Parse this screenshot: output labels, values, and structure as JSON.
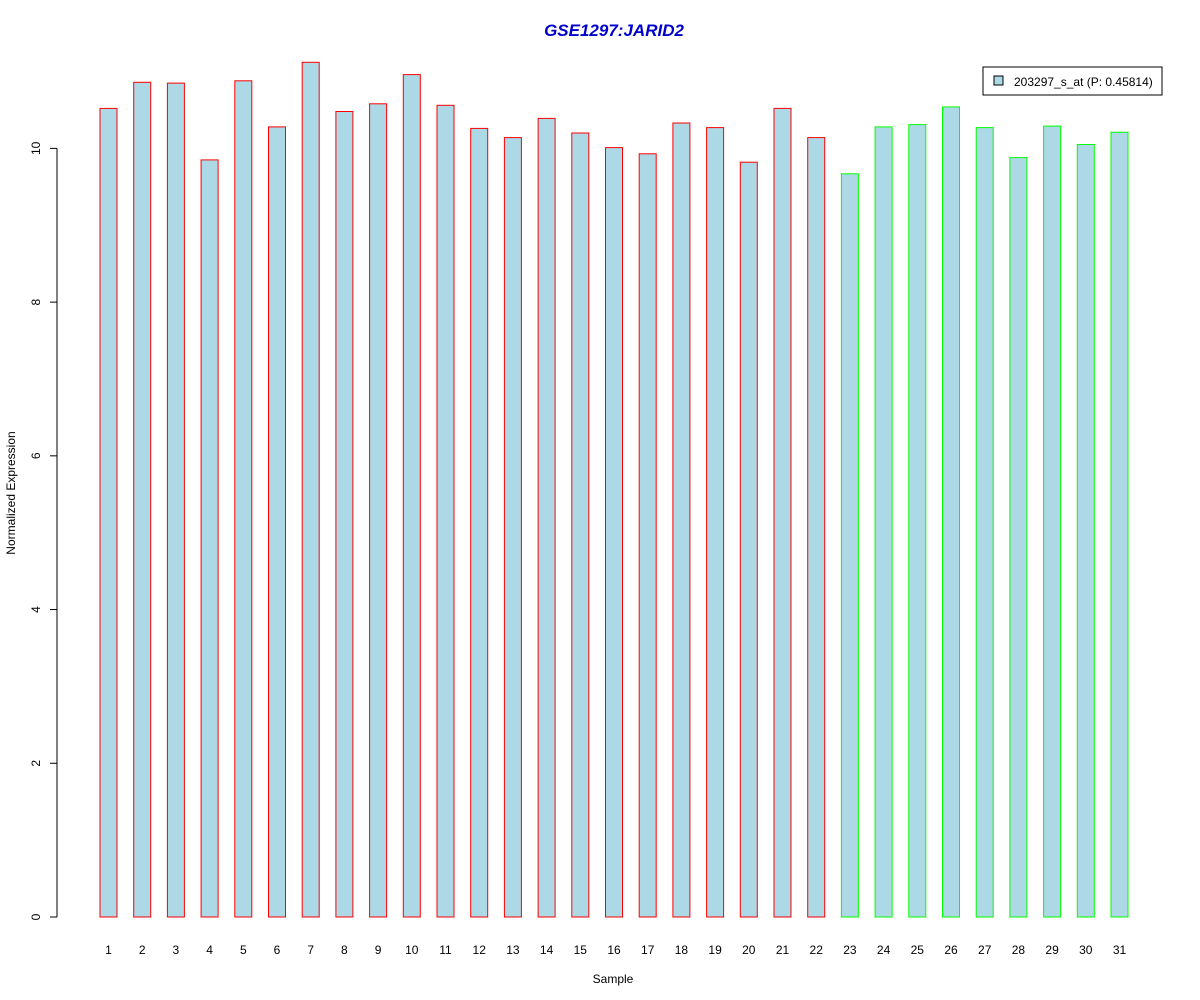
{
  "chart_data": {
    "type": "bar",
    "title": "GSE1297:JARID2",
    "xlabel": "Sample",
    "ylabel": "Normalized Expression",
    "ylim": [
      0,
      11.15
    ],
    "yticks": [
      0,
      2,
      4,
      6,
      8,
      10
    ],
    "grid": false,
    "legend": {
      "position": "top-right",
      "label": "203297_s_at (P: 0.45814)"
    },
    "categories": [
      "1",
      "2",
      "3",
      "4",
      "5",
      "6",
      "7",
      "8",
      "9",
      "10",
      "11",
      "12",
      "13",
      "14",
      "15",
      "16",
      "17",
      "18",
      "19",
      "20",
      "21",
      "22",
      "23",
      "24",
      "25",
      "26",
      "27",
      "28",
      "29",
      "30",
      "31"
    ],
    "values": [
      10.52,
      10.86,
      10.85,
      9.85,
      10.88,
      10.28,
      11.12,
      10.48,
      10.58,
      10.96,
      10.56,
      10.26,
      10.14,
      10.39,
      10.2,
      10.01,
      9.93,
      10.33,
      10.27,
      9.82,
      10.52,
      10.14,
      9.67,
      10.28,
      10.31,
      10.54,
      10.27,
      9.88,
      10.29,
      10.05,
      10.21
    ],
    "groups": [
      "red",
      "red",
      "red",
      "red",
      "red",
      "red",
      "red",
      "red",
      "red",
      "red",
      "red",
      "red",
      "red",
      "red",
      "red",
      "red",
      "red",
      "red",
      "red",
      "red",
      "red",
      "red",
      "green",
      "green",
      "green",
      "green",
      "green",
      "green",
      "green",
      "green",
      "green"
    ]
  },
  "colors": {
    "bar_fill": "#add8e6",
    "red": "#ff0000",
    "green": "#00ff00",
    "title": "#0000cd",
    "axis": "#000000"
  }
}
